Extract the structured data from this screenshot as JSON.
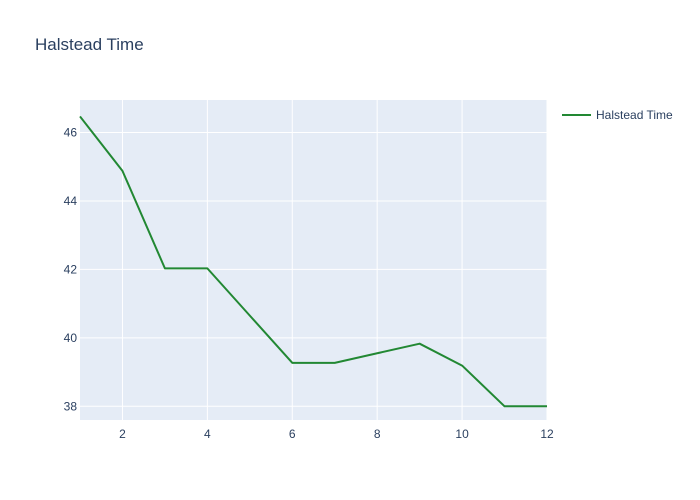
{
  "chart_data": {
    "type": "line",
    "title": "Halstead Time",
    "xlabel": "",
    "ylabel": "",
    "xlim": [
      1,
      12
    ],
    "ylim": [
      37.6,
      46.95
    ],
    "x_ticks": [
      2,
      4,
      6,
      8,
      10,
      12
    ],
    "y_ticks": [
      38,
      40,
      42,
      44,
      46
    ],
    "grid": true,
    "legend_position": "top-right",
    "plot_background": "#e5ecf6",
    "series": [
      {
        "name": "Halstead Time",
        "color": "#228833",
        "x": [
          1,
          2,
          3,
          4,
          5,
          6,
          7,
          8,
          9,
          10,
          11,
          12
        ],
        "y": [
          46.47,
          44.88,
          42.03,
          42.03,
          40.65,
          39.27,
          39.27,
          39.55,
          39.83,
          39.19,
          38.0,
          38.0
        ]
      }
    ]
  }
}
